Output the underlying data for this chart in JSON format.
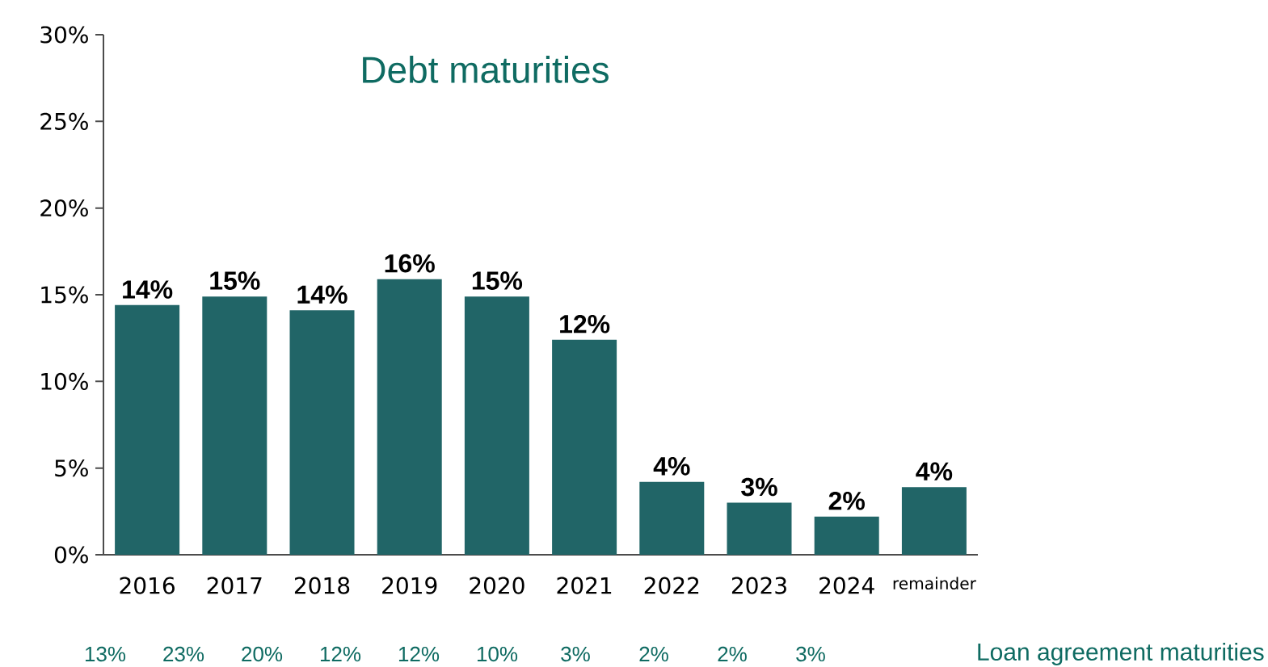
{
  "chart_data": {
    "type": "bar",
    "title": "Debt maturities",
    "categories": [
      "2016",
      "2017",
      "2018",
      "2019",
      "2020",
      "2021",
      "2022",
      "2023",
      "2024",
      "remainder"
    ],
    "values": [
      14.4,
      14.9,
      14.1,
      15.9,
      14.9,
      12.4,
      4.2,
      3.0,
      2.2,
      3.9
    ],
    "value_labels": [
      "14%",
      "15%",
      "14%",
      "16%",
      "15%",
      "12%",
      "4%",
      "3%",
      "2%",
      "4%"
    ],
    "color": "#216567",
    "ylim": [
      0,
      30
    ],
    "yticks": [
      {
        "value": 0,
        "label": "0%"
      },
      {
        "value": 5,
        "label": "5%"
      },
      {
        "value": 10,
        "label": "10%"
      },
      {
        "value": 15,
        "label": "15%"
      },
      {
        "value": 20,
        "label": "20%"
      },
      {
        "value": 25,
        "label": "25%"
      },
      {
        "value": 30,
        "label": "30%"
      }
    ],
    "grid": false,
    "annotations": [
      "13%",
      "23%",
      "20%",
      "12%",
      "12%",
      "10%",
      "3%",
      "2%",
      "2%",
      "3%",
      "Loan agreement maturities"
    ]
  }
}
